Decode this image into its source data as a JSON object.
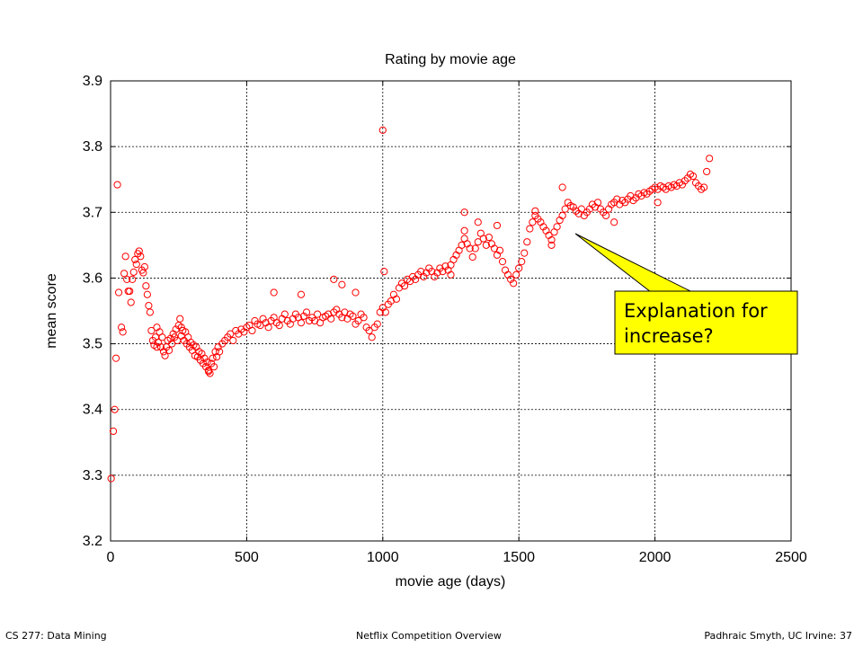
{
  "chart_data": {
    "type": "scatter",
    "title": "Rating by movie age",
    "xlabel": "movie age (days)",
    "ylabel": "mean score",
    "xlim": [
      0,
      2500
    ],
    "ylim": [
      3.2,
      3.9
    ],
    "xticks": [
      "0",
      "500",
      "1000",
      "1500",
      "2000",
      "2500"
    ],
    "yticks": [
      "3.2",
      "3.3",
      "3.4",
      "3.5",
      "3.6",
      "3.7",
      "3.8",
      "3.9"
    ],
    "grid": true,
    "marker": "open-circle",
    "series_color": "#ff0000",
    "annotation": {
      "text_lines": [
        "Explanation for",
        "increase?"
      ],
      "points_to": [
        1700,
        3.67
      ],
      "fill": "#ffff00"
    },
    "points": [
      [
        2,
        3.295
      ],
      [
        10,
        3.367
      ],
      [
        15,
        3.4
      ],
      [
        20,
        3.478
      ],
      [
        25,
        3.742
      ],
      [
        30,
        3.578
      ],
      [
        40,
        3.525
      ],
      [
        45,
        3.518
      ],
      [
        50,
        3.607
      ],
      [
        55,
        3.633
      ],
      [
        60,
        3.598
      ],
      [
        65,
        3.58
      ],
      [
        70,
        3.58
      ],
      [
        75,
        3.563
      ],
      [
        80,
        3.598
      ],
      [
        85,
        3.609
      ],
      [
        90,
        3.628
      ],
      [
        95,
        3.621
      ],
      [
        100,
        3.637
      ],
      [
        105,
        3.641
      ],
      [
        110,
        3.633
      ],
      [
        115,
        3.612
      ],
      [
        120,
        3.608
      ],
      [
        125,
        3.617
      ],
      [
        130,
        3.588
      ],
      [
        135,
        3.575
      ],
      [
        140,
        3.558
      ],
      [
        145,
        3.548
      ],
      [
        150,
        3.52
      ],
      [
        155,
        3.505
      ],
      [
        160,
        3.498
      ],
      [
        165,
        3.51
      ],
      [
        170,
        3.525
      ],
      [
        175,
        3.502
      ],
      [
        180,
        3.518
      ],
      [
        185,
        3.495
      ],
      [
        190,
        3.51
      ],
      [
        195,
        3.488
      ],
      [
        200,
        3.482
      ],
      [
        205,
        3.495
      ],
      [
        210,
        3.505
      ],
      [
        215,
        3.49
      ],
      [
        220,
        3.508
      ],
      [
        225,
        3.5
      ],
      [
        230,
        3.515
      ],
      [
        235,
        3.51
      ],
      [
        240,
        3.522
      ],
      [
        245,
        3.505
      ],
      [
        250,
        3.528
      ],
      [
        255,
        3.538
      ],
      [
        260,
        3.512
      ],
      [
        265,
        3.52
      ],
      [
        270,
        3.505
      ],
      [
        275,
        3.518
      ],
      [
        280,
        3.5
      ],
      [
        285,
        3.51
      ],
      [
        290,
        3.495
      ],
      [
        295,
        3.502
      ],
      [
        300,
        3.49
      ],
      [
        305,
        3.498
      ],
      [
        310,
        3.482
      ],
      [
        315,
        3.495
      ],
      [
        320,
        3.48
      ],
      [
        325,
        3.488
      ],
      [
        330,
        3.475
      ],
      [
        335,
        3.485
      ],
      [
        340,
        3.47
      ],
      [
        345,
        3.478
      ],
      [
        350,
        3.465
      ],
      [
        355,
        3.472
      ],
      [
        360,
        3.458
      ],
      [
        365,
        3.455
      ],
      [
        370,
        3.47
      ],
      [
        375,
        3.478
      ],
      [
        380,
        3.465
      ],
      [
        385,
        3.488
      ],
      [
        390,
        3.48
      ],
      [
        395,
        3.495
      ],
      [
        400,
        3.488
      ],
      [
        410,
        3.5
      ],
      [
        420,
        3.505
      ],
      [
        430,
        3.51
      ],
      [
        440,
        3.515
      ],
      [
        450,
        3.505
      ],
      [
        460,
        3.52
      ],
      [
        470,
        3.515
      ],
      [
        480,
        3.522
      ],
      [
        490,
        3.518
      ],
      [
        500,
        3.525
      ],
      [
        510,
        3.528
      ],
      [
        520,
        3.52
      ],
      [
        530,
        3.535
      ],
      [
        540,
        3.53
      ],
      [
        550,
        3.528
      ],
      [
        560,
        3.538
      ],
      [
        570,
        3.532
      ],
      [
        580,
        3.525
      ],
      [
        590,
        3.535
      ],
      [
        600,
        3.54
      ],
      [
        610,
        3.532
      ],
      [
        620,
        3.528
      ],
      [
        630,
        3.538
      ],
      [
        640,
        3.545
      ],
      [
        650,
        3.535
      ],
      [
        660,
        3.53
      ],
      [
        670,
        3.538
      ],
      [
        680,
        3.545
      ],
      [
        690,
        3.54
      ],
      [
        700,
        3.532
      ],
      [
        710,
        3.542
      ],
      [
        720,
        3.548
      ],
      [
        730,
        3.535
      ],
      [
        740,
        3.54
      ],
      [
        750,
        3.535
      ],
      [
        760,
        3.545
      ],
      [
        770,
        3.532
      ],
      [
        780,
        3.54
      ],
      [
        790,
        3.542
      ],
      [
        800,
        3.545
      ],
      [
        810,
        3.538
      ],
      [
        820,
        3.548
      ],
      [
        830,
        3.552
      ],
      [
        840,
        3.545
      ],
      [
        850,
        3.54
      ],
      [
        860,
        3.548
      ],
      [
        870,
        3.538
      ],
      [
        880,
        3.545
      ],
      [
        890,
        3.542
      ],
      [
        900,
        3.53
      ],
      [
        910,
        3.535
      ],
      [
        920,
        3.545
      ],
      [
        930,
        3.54
      ],
      [
        940,
        3.525
      ],
      [
        950,
        3.52
      ],
      [
        960,
        3.51
      ],
      [
        970,
        3.525
      ],
      [
        980,
        3.53
      ],
      [
        990,
        3.548
      ],
      [
        1000,
        3.555
      ],
      [
        1010,
        3.548
      ],
      [
        1020,
        3.56
      ],
      [
        1030,
        3.565
      ],
      [
        1040,
        3.575
      ],
      [
        1050,
        3.568
      ],
      [
        1060,
        3.585
      ],
      [
        1070,
        3.592
      ],
      [
        1080,
        3.588
      ],
      [
        1090,
        3.598
      ],
      [
        1100,
        3.595
      ],
      [
        1110,
        3.602
      ],
      [
        1120,
        3.598
      ],
      [
        1130,
        3.605
      ],
      [
        1140,
        3.61
      ],
      [
        1150,
        3.602
      ],
      [
        1160,
        3.608
      ],
      [
        1170,
        3.615
      ],
      [
        1180,
        3.61
      ],
      [
        1190,
        3.602
      ],
      [
        1200,
        3.608
      ],
      [
        1210,
        3.615
      ],
      [
        1220,
        3.61
      ],
      [
        1230,
        3.618
      ],
      [
        1240,
        3.612
      ],
      [
        1250,
        3.62
      ],
      [
        1260,
        3.628
      ],
      [
        1270,
        3.635
      ],
      [
        1280,
        3.642
      ],
      [
        1290,
        3.65
      ],
      [
        1300,
        3.66
      ],
      [
        1310,
        3.652
      ],
      [
        1320,
        3.645
      ],
      [
        1330,
        3.632
      ],
      [
        1340,
        3.645
      ],
      [
        1350,
        3.655
      ],
      [
        1360,
        3.668
      ],
      [
        1370,
        3.66
      ],
      [
        1380,
        3.65
      ],
      [
        1390,
        3.662
      ],
      [
        1400,
        3.652
      ],
      [
        1410,
        3.645
      ],
      [
        1420,
        3.635
      ],
      [
        1430,
        3.642
      ],
      [
        1440,
        3.625
      ],
      [
        1450,
        3.612
      ],
      [
        1460,
        3.605
      ],
      [
        1470,
        3.598
      ],
      [
        1480,
        3.592
      ],
      [
        1490,
        3.605
      ],
      [
        1500,
        3.615
      ],
      [
        1510,
        3.625
      ],
      [
        1520,
        3.638
      ],
      [
        1530,
        3.655
      ],
      [
        1540,
        3.675
      ],
      [
        1550,
        3.685
      ],
      [
        1560,
        3.695
      ],
      [
        1570,
        3.69
      ],
      [
        1580,
        3.685
      ],
      [
        1590,
        3.678
      ],
      [
        1600,
        3.672
      ],
      [
        1610,
        3.665
      ],
      [
        1620,
        3.658
      ],
      [
        1630,
        3.67
      ],
      [
        1640,
        3.678
      ],
      [
        1650,
        3.688
      ],
      [
        1660,
        3.695
      ],
      [
        1670,
        3.705
      ],
      [
        1680,
        3.715
      ],
      [
        1690,
        3.71
      ],
      [
        1700,
        3.708
      ],
      [
        1710,
        3.702
      ],
      [
        1720,
        3.698
      ],
      [
        1730,
        3.705
      ],
      [
        1740,
        3.695
      ],
      [
        1750,
        3.7
      ],
      [
        1760,
        3.705
      ],
      [
        1770,
        3.712
      ],
      [
        1780,
        3.708
      ],
      [
        1790,
        3.715
      ],
      [
        1800,
        3.705
      ],
      [
        1810,
        3.7
      ],
      [
        1820,
        3.695
      ],
      [
        1830,
        3.705
      ],
      [
        1840,
        3.712
      ],
      [
        1850,
        3.715
      ],
      [
        1860,
        3.72
      ],
      [
        1870,
        3.712
      ],
      [
        1880,
        3.718
      ],
      [
        1890,
        3.715
      ],
      [
        1900,
        3.72
      ],
      [
        1910,
        3.725
      ],
      [
        1920,
        3.718
      ],
      [
        1930,
        3.722
      ],
      [
        1940,
        3.728
      ],
      [
        1950,
        3.725
      ],
      [
        1960,
        3.73
      ],
      [
        1970,
        3.728
      ],
      [
        1980,
        3.732
      ],
      [
        1990,
        3.735
      ],
      [
        2000,
        3.738
      ],
      [
        2010,
        3.735
      ],
      [
        2020,
        3.74
      ],
      [
        2030,
        3.738
      ],
      [
        2040,
        3.735
      ],
      [
        2050,
        3.74
      ],
      [
        2060,
        3.738
      ],
      [
        2070,
        3.742
      ],
      [
        2080,
        3.74
      ],
      [
        2090,
        3.745
      ],
      [
        2100,
        3.742
      ],
      [
        2110,
        3.748
      ],
      [
        2120,
        3.752
      ],
      [
        2130,
        3.758
      ],
      [
        2140,
        3.755
      ],
      [
        2150,
        3.745
      ],
      [
        2160,
        3.74
      ],
      [
        2170,
        3.735
      ],
      [
        2180,
        3.738
      ],
      [
        2190,
        3.762
      ],
      [
        2200,
        3.782
      ],
      [
        1000,
        3.825
      ],
      [
        1005,
        3.61
      ],
      [
        1300,
        3.7
      ],
      [
        1350,
        3.685
      ],
      [
        1420,
        3.68
      ],
      [
        1660,
        3.738
      ],
      [
        820,
        3.598
      ],
      [
        600,
        3.578
      ],
      [
        700,
        3.575
      ],
      [
        900,
        3.578
      ],
      [
        850,
        3.59
      ],
      [
        1850,
        3.685
      ],
      [
        2010,
        3.715
      ],
      [
        1300,
        3.672
      ],
      [
        1560,
        3.702
      ],
      [
        1620,
        3.65
      ],
      [
        360,
        3.46
      ],
      [
        260,
        3.525
      ],
      [
        170,
        3.495
      ],
      [
        1250,
        3.605
      ]
    ]
  },
  "footer": {
    "left": "CS 277: Data Mining",
    "center": "Netflix Competition Overview",
    "right": "Padhraic Smyth, UC Irvine: 37"
  }
}
